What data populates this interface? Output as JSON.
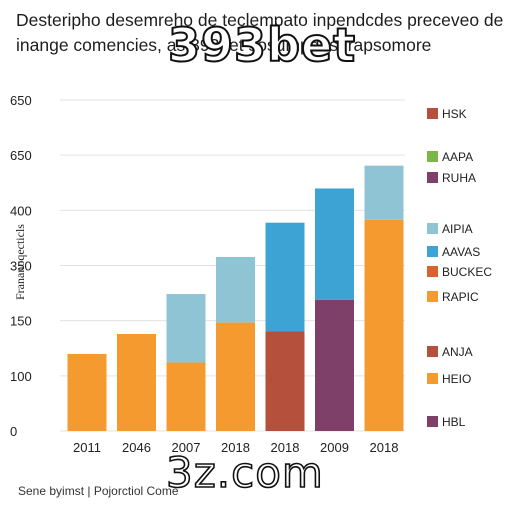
{
  "title_lines": [
    "Desteripho desemreho de teclempato inpendcdes preceveo de",
    "inange comencies, as 393bet sosumpdes frapsomore"
  ],
  "watermark_top": "393bet",
  "watermark_bottom": "3z.com",
  "footer": "Sene byimst | Pojorctiol Come",
  "chart_data": {
    "type": "bar",
    "stacked": true,
    "ylabel": "Frananoqecticls",
    "ytick_labels": [
      "0",
      "100",
      "150",
      "350",
      "400",
      "650",
      "650"
    ],
    "categories": [
      "2011",
      "2046",
      "2007",
      "2018",
      "2018",
      "2009",
      "2018"
    ],
    "bars": [
      {
        "segments": [
          {
            "value": 135,
            "color": "#f59a2f"
          }
        ]
      },
      {
        "segments": [
          {
            "value": 170,
            "color": "#f59a2f"
          }
        ]
      },
      {
        "segments": [
          {
            "value": 120,
            "color": "#f59a2f"
          },
          {
            "value": 120,
            "color": "#8fc4d4"
          }
        ]
      },
      {
        "segments": [
          {
            "value": 190,
            "color": "#f59a2f"
          },
          {
            "value": 115,
            "color": "#8fc4d4"
          }
        ]
      },
      {
        "segments": [
          {
            "value": 175,
            "color": "#b5503c"
          },
          {
            "value": 190,
            "color": "#3da3d4"
          }
        ]
      },
      {
        "segments": [
          {
            "value": 230,
            "color": "#7e3f68"
          },
          {
            "value": 195,
            "color": "#3da3d4"
          }
        ]
      },
      {
        "segments": [
          {
            "value": 370,
            "color": "#f59a2f"
          },
          {
            "value": 95,
            "color": "#8fc4d4"
          }
        ]
      }
    ],
    "ylim": [
      0,
      580
    ],
    "legend_position": "right",
    "legend": [
      {
        "label": "HSK",
        "color": "#b5503c"
      },
      {
        "label": "AAPA",
        "color": "#7ab648"
      },
      {
        "label": "RUHA",
        "color": "#7e3f68"
      },
      {
        "label": "AIPIA",
        "color": "#8fc4d4"
      },
      {
        "label": "AAVAS",
        "color": "#3da3d4"
      },
      {
        "label": "BUCKEC",
        "color": "#d9632e"
      },
      {
        "label": "RAPIC",
        "color": "#f59a2f"
      },
      {
        "label": "ANJA",
        "color": "#b5503c"
      },
      {
        "label": "HEIO",
        "color": "#f59a2f"
      },
      {
        "label": "HBL",
        "color": "#7e3f68"
      }
    ]
  }
}
